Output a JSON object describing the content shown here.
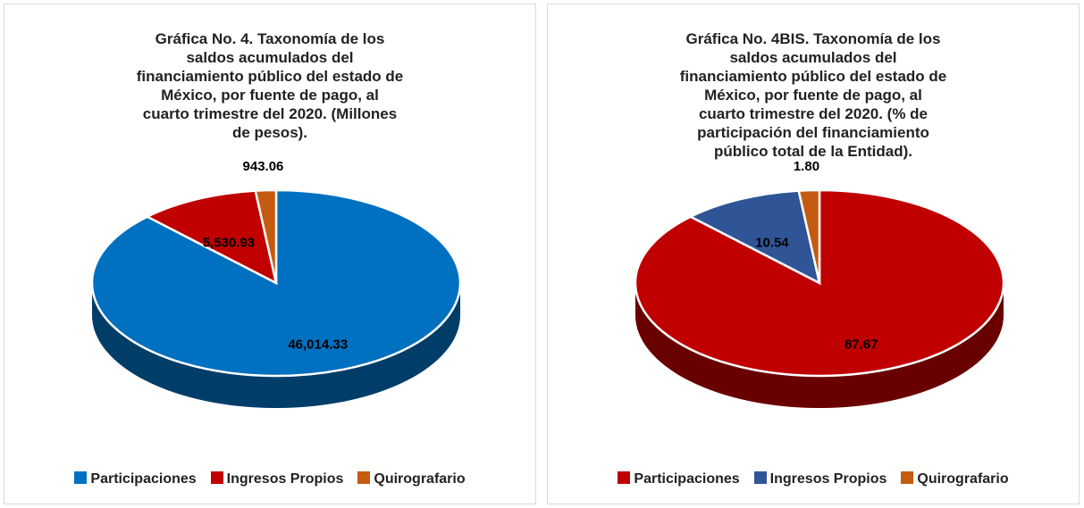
{
  "chart_data": [
    {
      "type": "pie",
      "title": "Gráfica No. 4. Taxonomía de los saldos acumulados del financiamiento público del estado de México, por fuente de pago, al cuarto trimestre del 2020. (Millones de pesos).",
      "categories": [
        "Participaciones",
        "Ingresos Propios",
        "Quirografario"
      ],
      "values": [
        46014.33,
        5530.93,
        943.06
      ],
      "value_labels": [
        "46,014.33",
        "5,530.93",
        "943.06"
      ],
      "colors": [
        "#0070c0",
        "#c00000",
        "#c55a11"
      ]
    },
    {
      "type": "pie",
      "title": "Gráfica No. 4BIS. Taxonomía de los saldos acumulados del financiamiento público del estado de México, por fuente de pago, al cuarto trimestre del 2020. (% de participación del financiamiento público total de la Entidad).",
      "categories": [
        "Participaciones",
        "Ingresos Propios",
        "Quirografario"
      ],
      "values": [
        87.67,
        10.54,
        1.8
      ],
      "value_labels": [
        "87.67",
        "10.54",
        "1.80"
      ],
      "colors": [
        "#c00000",
        "#2f5597",
        "#c55a11"
      ]
    }
  ]
}
